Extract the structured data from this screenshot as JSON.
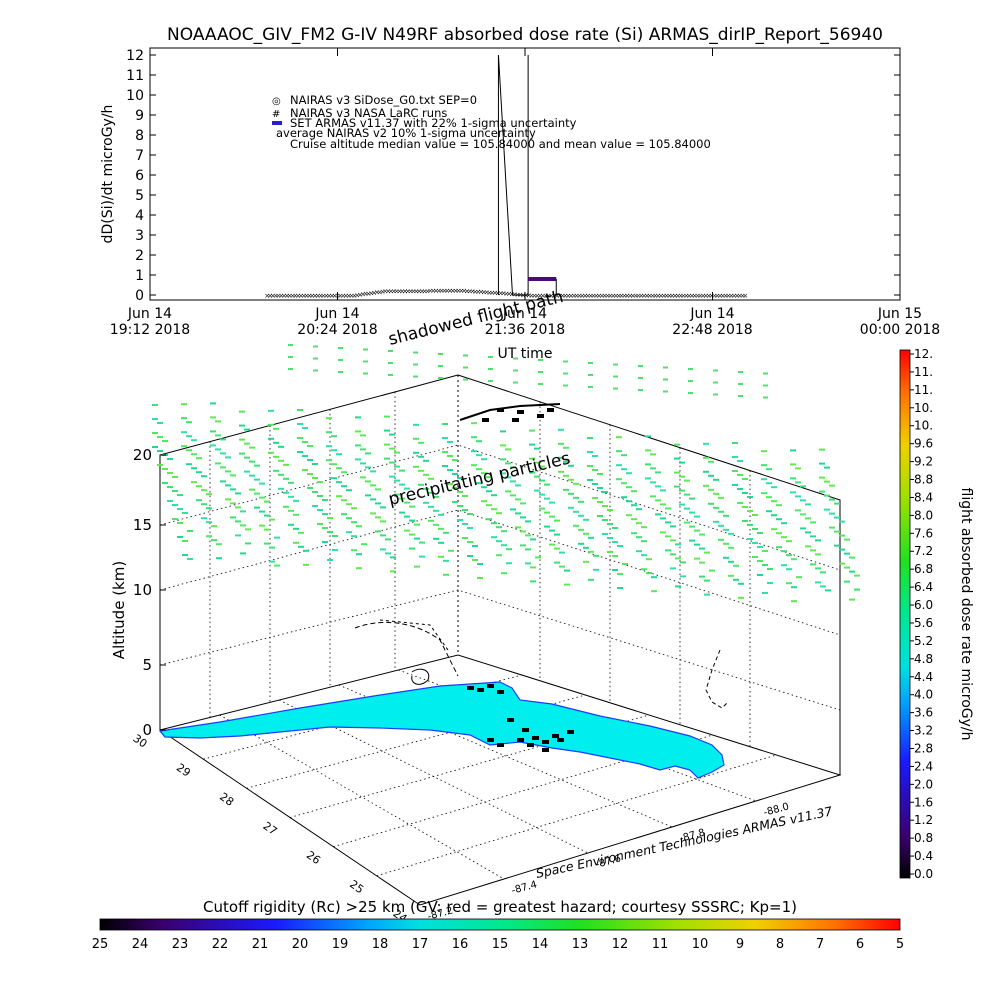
{
  "title": "NOAAAOC_GIV_FM2 G-IV   N49RF  absorbed dose rate (Si) ARMAS_dirIP_Report_56940",
  "chart_data": [
    {
      "type": "line",
      "ylabel": "dD(Si)/dt microGy/h",
      "xlabel": "UT time",
      "ylim": [
        0,
        12
      ],
      "y_ticks": [
        "0",
        "1",
        "2",
        "3",
        "4",
        "5",
        "6",
        "7",
        "8",
        "9",
        "10",
        "11",
        "12"
      ],
      "x_ticks": [
        {
          "day": "Jun 14",
          "time": "19:12 2018"
        },
        {
          "day": "Jun 14",
          "time": "20:24 2018"
        },
        {
          "day": "Jun 14",
          "time": "21:36 2018"
        },
        {
          "day": "Jun 14",
          "time": "22:48 2018"
        },
        {
          "day": "Jun 15",
          "time": "00:00 2018"
        }
      ],
      "x_hours": [
        19.2,
        20.4,
        21.6,
        22.8,
        24.0
      ],
      "legend": [
        {
          "symbol": "◎",
          "text": "NAIRAS v3 SiDose_G0.txt SEP=0"
        },
        {
          "symbol": "#",
          "text": "NAIRAS v3 NASA LaRC runs"
        },
        {
          "symbol": "■",
          "text": "SET ARMAS v11.37 with 22% 1-sigma uncertainty",
          "color": "#2a1fd0"
        },
        {
          "symbol": "",
          "text": "average NAIRAS v2 10% 1-sigma uncertainty"
        },
        {
          "symbol": "",
          "text": "Cruise altitude median value = 105.84000 and mean value = 105.84000"
        }
      ],
      "series": [
        {
          "marker": "x",
          "start_hour": 19.95,
          "end_hour": 23.02,
          "values_profile": [
            [
              19.95,
              0
            ],
            [
              20.5,
              0
            ],
            [
              20.7,
              0.22
            ],
            [
              21.2,
              0.25
            ],
            [
              21.45,
              0.12
            ],
            [
              21.65,
              0
            ],
            [
              23.02,
              0
            ]
          ]
        },
        {
          "marker": "line",
          "values": [
            [
              21.43,
              0
            ],
            [
              21.43,
              12
            ],
            [
              21.52,
              0
            ],
            [
              21.62,
              0
            ],
            [
              21.62,
              12
            ]
          ]
        },
        {
          "marker": "bar",
          "color": "#4b0a7a",
          "values": [
            [
              21.62,
              0.8
            ],
            [
              21.8,
              0.8
            ]
          ]
        }
      ]
    },
    {
      "type": "scatter",
      "zlabel": "Altitude (km)",
      "z_ticks": [
        "0",
        "5",
        "10",
        "15",
        "20"
      ],
      "lat_ticks": [
        "30",
        "29",
        "28",
        "27",
        "26",
        "25",
        "24"
      ],
      "lon_ticks": [
        "-87.2",
        "-87.4",
        "-87.6",
        "-87.8",
        "-88.0"
      ],
      "annotations": {
        "shadowed": "shadowed flight path",
        "precip": "precipitating particles",
        "credit": "Space Environment Technologies ARMAS v11.37"
      },
      "map_color": "#00eeee"
    }
  ],
  "colorbar_right": {
    "label": "flight absorbed dose rate microGy/h",
    "ticks": [
      "12.",
      "11.",
      "11.",
      "10.",
      "10.",
      "9.6",
      "9.2",
      "8.8",
      "8.4",
      "8.0",
      "7.6",
      "7.2",
      "6.8",
      "6.4",
      "6.0",
      "5.6",
      "5.2",
      "4.8",
      "4.4",
      "4.0",
      "3.6",
      "3.2",
      "2.8",
      "2.4",
      "2.0",
      "1.6",
      "1.2",
      "0.8",
      "0.4",
      "0.0"
    ]
  },
  "colorbar_bottom": {
    "label": "Cutoff rigidity (Rc) >25 km (GV: red = greatest hazard; courtesy SSSRC; Kp=1)",
    "ticks": [
      "25",
      "24",
      "23",
      "22",
      "21",
      "20",
      "19",
      "18",
      "17",
      "16",
      "15",
      "14",
      "13",
      "12",
      "11",
      "10",
      "9",
      "8",
      "7",
      "6",
      "5"
    ]
  },
  "colors": {
    "rainbow": [
      "#000000",
      "#3b0070",
      "#1a1aff",
      "#00a0ff",
      "#00e0e0",
      "#00e890",
      "#20e020",
      "#a0e000",
      "#f0d000",
      "#ff7000",
      "#ff0000"
    ]
  }
}
